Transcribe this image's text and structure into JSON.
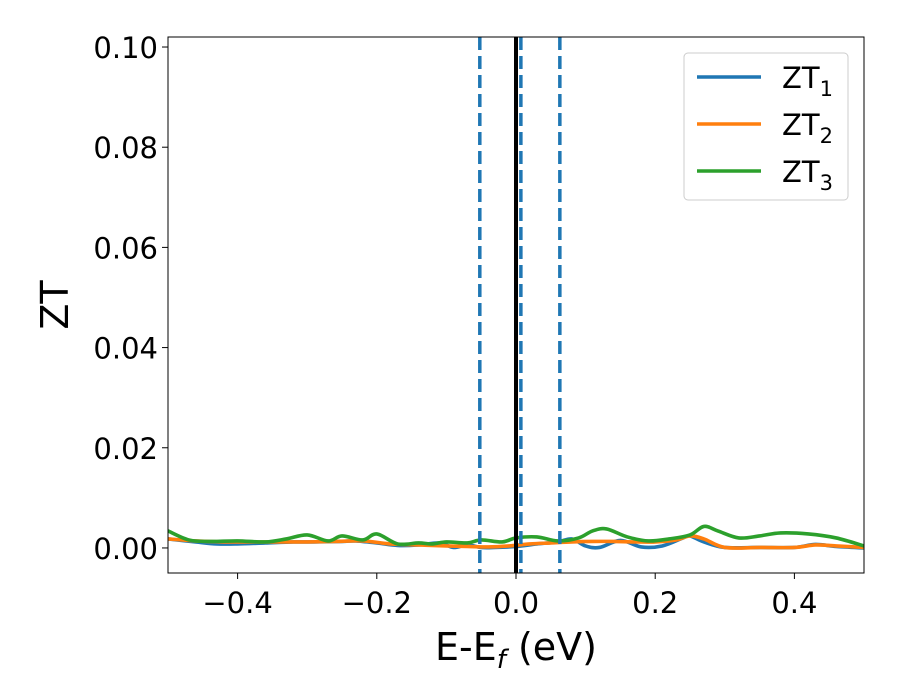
{
  "chart_data": {
    "type": "line",
    "xlabel": "E-E_f (eV)",
    "xlabel_parts": {
      "main": "E-E",
      "sub": "f",
      "suffix": " (eV)"
    },
    "ylabel": "ZT",
    "xlim": [
      -0.5,
      0.5
    ],
    "ylim": [
      -0.005,
      0.102
    ],
    "xticks": [
      -0.4,
      -0.2,
      0.0,
      0.2,
      0.4
    ],
    "xtick_labels": [
      "−0.4",
      "−0.2",
      "0.0",
      "0.2",
      "0.4"
    ],
    "yticks": [
      0.0,
      0.02,
      0.04,
      0.06,
      0.08,
      0.1
    ],
    "ytick_labels": [
      "0.00",
      "0.02",
      "0.04",
      "0.06",
      "0.08",
      "0.10"
    ],
    "grid": false,
    "legend_position": "top-right",
    "vlines": [
      {
        "x": 0.0,
        "style": "solid",
        "color": "#000000"
      },
      {
        "x": -0.052,
        "style": "dashed",
        "color": "#1f77b4"
      },
      {
        "x": 0.007,
        "style": "dashed",
        "color": "#1f77b4"
      },
      {
        "x": 0.063,
        "style": "dashed",
        "color": "#1f77b4"
      }
    ],
    "series": [
      {
        "name": "ZT_1",
        "label_main": "ZT",
        "label_sub": "1",
        "color": "#1f77b4",
        "x": [
          -0.5,
          -0.46,
          -0.43,
          -0.4,
          -0.36,
          -0.32,
          -0.29,
          -0.25,
          -0.23,
          -0.2,
          -0.17,
          -0.14,
          -0.11,
          -0.09,
          -0.07,
          -0.05,
          -0.03,
          0.0,
          0.03,
          0.06,
          0.08,
          0.1,
          0.12,
          0.15,
          0.18,
          0.21,
          0.24,
          0.25,
          0.27,
          0.3,
          0.35,
          0.4,
          0.43,
          0.46,
          0.5
        ],
        "y": [
          0.0018,
          0.0012,
          0.0008,
          0.0008,
          0.001,
          0.0012,
          0.0012,
          0.0013,
          0.0014,
          0.001,
          0.0005,
          0.0006,
          0.001,
          0.0001,
          0.0006,
          0.0001,
          0.0001,
          0.0003,
          0.0008,
          0.0012,
          0.0018,
          0.0004,
          0.0001,
          0.0015,
          0.0002,
          0.0004,
          0.002,
          0.0024,
          0.0012,
          0.0001,
          0.0001,
          0.0001,
          0.0007,
          0.0003,
          0.0
        ]
      },
      {
        "name": "ZT_2",
        "label_main": "ZT",
        "label_sub": "2",
        "color": "#ff7f0e",
        "x": [
          -0.5,
          -0.46,
          -0.42,
          -0.38,
          -0.34,
          -0.3,
          -0.26,
          -0.22,
          -0.18,
          -0.14,
          -0.1,
          -0.07,
          -0.04,
          -0.01,
          0.02,
          0.05,
          0.08,
          0.11,
          0.14,
          0.17,
          0.2,
          0.23,
          0.25,
          0.27,
          0.3,
          0.35,
          0.4,
          0.43,
          0.46,
          0.5
        ],
        "y": [
          0.0018,
          0.0014,
          0.0012,
          0.0012,
          0.0012,
          0.0012,
          0.0013,
          0.0014,
          0.0008,
          0.0006,
          0.0004,
          0.0003,
          0.0002,
          0.0004,
          0.0008,
          0.001,
          0.0012,
          0.0013,
          0.0013,
          0.0012,
          0.0012,
          0.0016,
          0.0024,
          0.0018,
          0.0001,
          0.0001,
          0.0001,
          0.0006,
          0.0004,
          0.0001
        ]
      },
      {
        "name": "ZT_3",
        "label_main": "ZT",
        "label_sub": "3",
        "color": "#2ca02c",
        "x": [
          -0.5,
          -0.47,
          -0.44,
          -0.4,
          -0.36,
          -0.33,
          -0.3,
          -0.27,
          -0.25,
          -0.22,
          -0.2,
          -0.17,
          -0.14,
          -0.12,
          -0.1,
          -0.07,
          -0.05,
          -0.02,
          0.0,
          0.03,
          0.06,
          0.09,
          0.11,
          0.13,
          0.16,
          0.19,
          0.22,
          0.25,
          0.27,
          0.29,
          0.32,
          0.35,
          0.38,
          0.42,
          0.46,
          0.5
        ],
        "y": [
          0.0034,
          0.0016,
          0.0013,
          0.0014,
          0.0012,
          0.0018,
          0.0026,
          0.0014,
          0.0024,
          0.0016,
          0.0028,
          0.0008,
          0.001,
          0.0008,
          0.0012,
          0.001,
          0.0016,
          0.0012,
          0.002,
          0.0022,
          0.0014,
          0.002,
          0.0034,
          0.0038,
          0.0022,
          0.0014,
          0.0018,
          0.0026,
          0.0043,
          0.0034,
          0.002,
          0.0024,
          0.003,
          0.0028,
          0.002,
          0.0004
        ]
      }
    ]
  }
}
